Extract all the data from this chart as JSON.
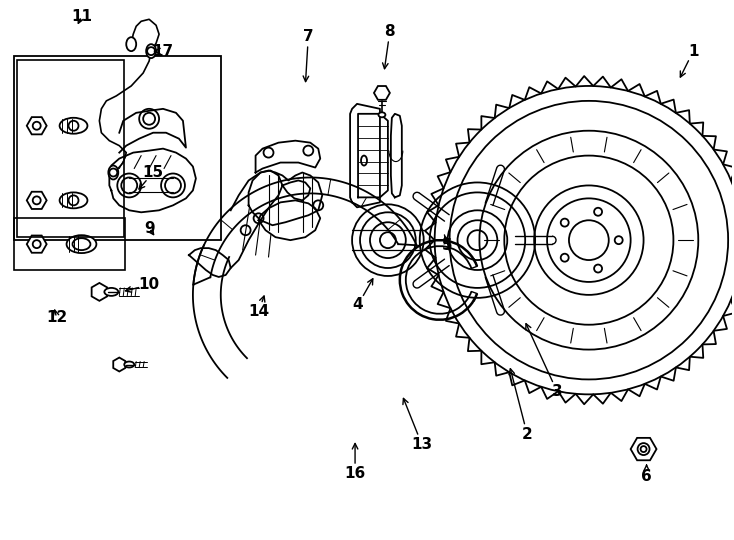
{
  "background_color": "#ffffff",
  "line_color": "#000000",
  "lw": 1.3,
  "figsize": [
    7.34,
    5.4
  ],
  "dpi": 100
}
